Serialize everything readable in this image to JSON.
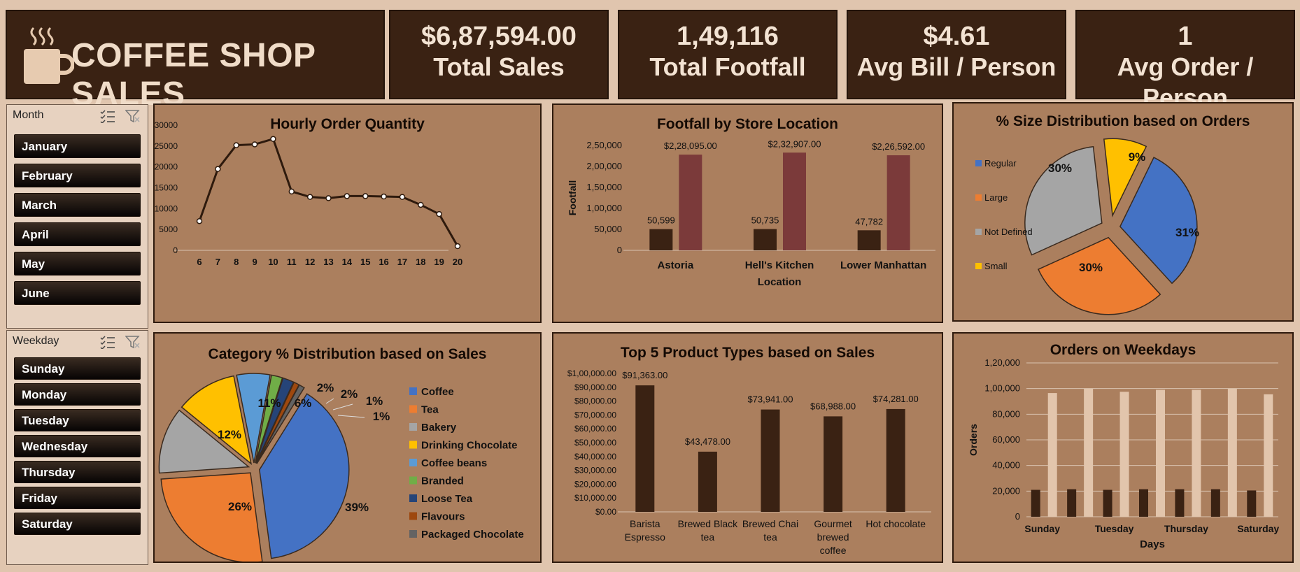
{
  "header": {
    "title": "COFFEE SHOP SALES",
    "icon": "coffee-cup-icon"
  },
  "kpis": [
    {
      "value": "$6,87,594.00",
      "label": "Total Sales"
    },
    {
      "value": "1,49,116",
      "label": "Total Footfall"
    },
    {
      "value": "$4.61",
      "label": "Avg Bill / Person"
    },
    {
      "value": "1",
      "label": "Avg Order / Person"
    }
  ],
  "month_slicer": {
    "title": "Month",
    "items": [
      "January",
      "February",
      "March",
      "April",
      "May",
      "June"
    ]
  },
  "weekday_slicer": {
    "title": "Weekday",
    "items": [
      "Sunday",
      "Monday",
      "Tuesday",
      "Wednesday",
      "Thursday",
      "Friday",
      "Saturday"
    ]
  },
  "colors": {
    "dark": "#3a2213",
    "panel": "#ab7f5e",
    "maroon": "#7b3a3a",
    "light": "#dcc0a9"
  },
  "chart_data": [
    {
      "type": "line",
      "title": "Hourly Order Quantity",
      "x": [
        6,
        7,
        8,
        9,
        10,
        11,
        12,
        13,
        14,
        15,
        16,
        17,
        18,
        19,
        20
      ],
      "values": [
        7000,
        19500,
        25200,
        25400,
        26700,
        14100,
        12800,
        12500,
        13000,
        13000,
        12900,
        12800,
        10900,
        8700,
        1000
      ],
      "yticks": [
        "0",
        "5000",
        "10000",
        "15000",
        "20000",
        "25000",
        "30000"
      ],
      "ylim": [
        0,
        30000
      ]
    },
    {
      "type": "bar",
      "title": "Footfall by Store Location",
      "categories": [
        "Astoria",
        "Hell's Kitchen",
        "Lower Manhattan"
      ],
      "series": [
        {
          "values": [
            50599,
            50735,
            47782
          ],
          "labels": [
            "50,599",
            "50,735",
            "47,782"
          ]
        },
        {
          "values": [
            228095,
            232907,
            226592
          ],
          "labels": [
            "$2,28,095.00",
            "$2,32,907.00",
            "$2,26,592.00"
          ]
        }
      ],
      "xlabel": "Location",
      "ylabel": "Footfall",
      "yticks": [
        "0",
        "50,000",
        "1,00,000",
        "1,50,000",
        "2,00,000",
        "2,50,000"
      ],
      "ylim": [
        0,
        250000
      ]
    },
    {
      "type": "pie",
      "title": "% Size Distribution based on Orders",
      "labels": [
        "Regular",
        "Large",
        "Not Defined",
        "Small"
      ],
      "values": [
        31,
        30,
        30,
        9
      ],
      "value_labels": [
        "31%",
        "30%",
        "30%",
        "9%"
      ],
      "colors": [
        "#4472c4",
        "#ed7d31",
        "#a5a5a5",
        "#ffc000"
      ]
    },
    {
      "type": "pie",
      "title": "Category % Distribution based on Sales",
      "labels": [
        "Coffee",
        "Tea",
        "Bakery",
        "Drinking Chocolate",
        "Coffee beans",
        "Branded",
        "Loose Tea",
        "Flavours",
        "Packaged Chocolate"
      ],
      "values": [
        39,
        26,
        12,
        11,
        6,
        2,
        2,
        1,
        1
      ],
      "value_labels": [
        "39%",
        "26%",
        "12%",
        "11%",
        "6%",
        "2%",
        "2%",
        "1%",
        "1%"
      ],
      "colors": [
        "#4472c4",
        "#ed7d31",
        "#a5a5a5",
        "#ffc000",
        "#5b9bd5",
        "#70ad47",
        "#264478",
        "#9e480e",
        "#636363"
      ]
    },
    {
      "type": "bar",
      "title": "Top 5 Product Types based on Sales",
      "categories": [
        "Barista Espresso",
        "Brewed Black tea",
        "Brewed Chai tea",
        "Gourmet brewed coffee",
        "Hot chocolate"
      ],
      "values": [
        91363,
        43478,
        73941,
        68988,
        74281
      ],
      "value_labels": [
        "$91,363.00",
        "$43,478.00",
        "$73,941.00",
        "$68,988.00",
        "$74,281.00"
      ],
      "yticks": [
        "$0.00",
        "$10,000.00",
        "$20,000.00",
        "$30,000.00",
        "$40,000.00",
        "$50,000.00",
        "$60,000.00",
        "$70,000.00",
        "$80,000.00",
        "$90,000.00",
        "$1,00,000.00"
      ],
      "ylim": [
        0,
        100000
      ]
    },
    {
      "type": "bar",
      "title": "Orders on Weekdays",
      "categories": [
        "Sunday",
        "Monday",
        "Tuesday",
        "Wednesday",
        "Thursday",
        "Friday",
        "Saturday"
      ],
      "category_labels": [
        "Sunday",
        "Tuesday",
        "Thursday",
        "Saturday"
      ],
      "series": [
        {
          "values": [
            21000,
            21500,
            21000,
            21500,
            21500,
            21500,
            20500
          ]
        },
        {
          "values": [
            96500,
            100000,
            97500,
            99000,
            99000,
            100000,
            95500
          ]
        }
      ],
      "xlabel": "Days",
      "ylabel": "Orders",
      "yticks": [
        "0",
        "20,000",
        "40,000",
        "60,000",
        "80,000",
        "1,00,000",
        "1,20,000"
      ],
      "ylim": [
        0,
        120000
      ]
    }
  ]
}
